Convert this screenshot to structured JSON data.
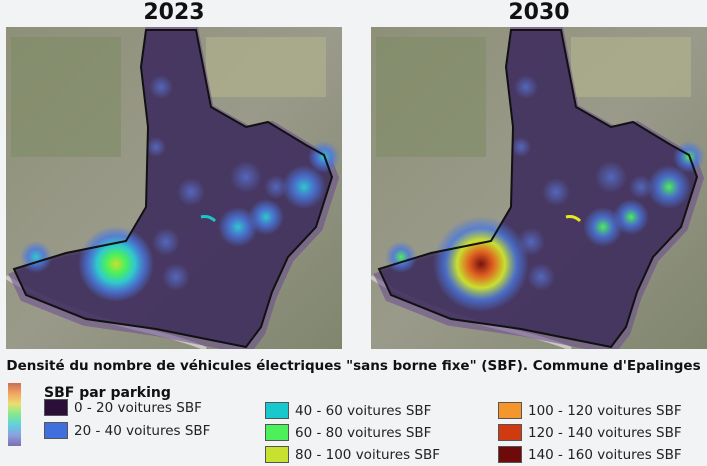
{
  "maps": [
    {
      "title": "2023",
      "intensity": "low"
    },
    {
      "title": "2030",
      "intensity": "high"
    }
  ],
  "caption": "Densité du nombre de véhicules électriques \"sans borne fixe\" (SBF). Commune d'Epalinges",
  "legend": {
    "title": "SBF par parking",
    "items": [
      {
        "label": "0 - 20 voitures SBF",
        "color": "#2a0f38"
      },
      {
        "label": "20 - 40 voitures SBF",
        "color": "#3f6fdc"
      },
      {
        "label": "40 - 60 voitures SBF",
        "color": "#18c8cc"
      },
      {
        "label": "60 - 80 voitures SBF",
        "color": "#4cf05a"
      },
      {
        "label": "80 - 100 voitures SBF",
        "color": "#c8e030"
      },
      {
        "label": "100 - 120 voitures SBF",
        "color": "#f4962c"
      },
      {
        "label": "120 - 140 voitures SBF",
        "color": "#d03a10"
      },
      {
        "label": "140 - 160 voitures SBF",
        "color": "#6e0a0a"
      }
    ]
  }
}
